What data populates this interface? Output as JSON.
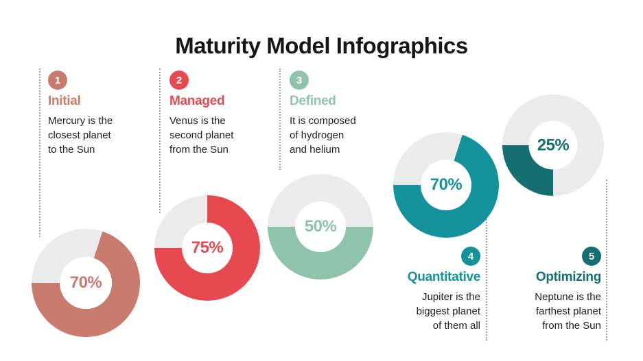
{
  "title": "Maturity Model Infographics",
  "steps": [
    {
      "number": "1",
      "title": "Initial",
      "description": "Mercury is the closest planet to the Sun"
    },
    {
      "number": "2",
      "title": "Managed",
      "description": "Venus is the second planet from the Sun"
    },
    {
      "number": "3",
      "title": "Defined",
      "description": "It is composed of hydrogen and helium"
    },
    {
      "number": "4",
      "title": "Quantitative",
      "description": "Jupiter is the biggest planet of them all"
    },
    {
      "number": "5",
      "title": "Optimizing",
      "description": "Neptune is the farthest planet from the Sun"
    }
  ],
  "chart_data": {
    "type": "pie",
    "subtype": "donut-progress-set",
    "title": "Maturity Model Infographics",
    "track_color": "#ebebeb",
    "fill_end_angle_deg": 270,
    "items": [
      {
        "label": "Initial",
        "value_pct": 70,
        "pct_label": "70%",
        "color": "#c97b6e"
      },
      {
        "label": "Managed",
        "value_pct": 75,
        "pct_label": "75%",
        "color": "#e64a50"
      },
      {
        "label": "Defined",
        "value_pct": 50,
        "pct_label": "50%",
        "color": "#8fc3ab"
      },
      {
        "label": "Quantitative",
        "value_pct": 70,
        "pct_label": "70%",
        "color": "#13929b"
      },
      {
        "label": "Optimizing",
        "value_pct": 25,
        "pct_label": "25%",
        "color": "#156f70"
      }
    ]
  }
}
